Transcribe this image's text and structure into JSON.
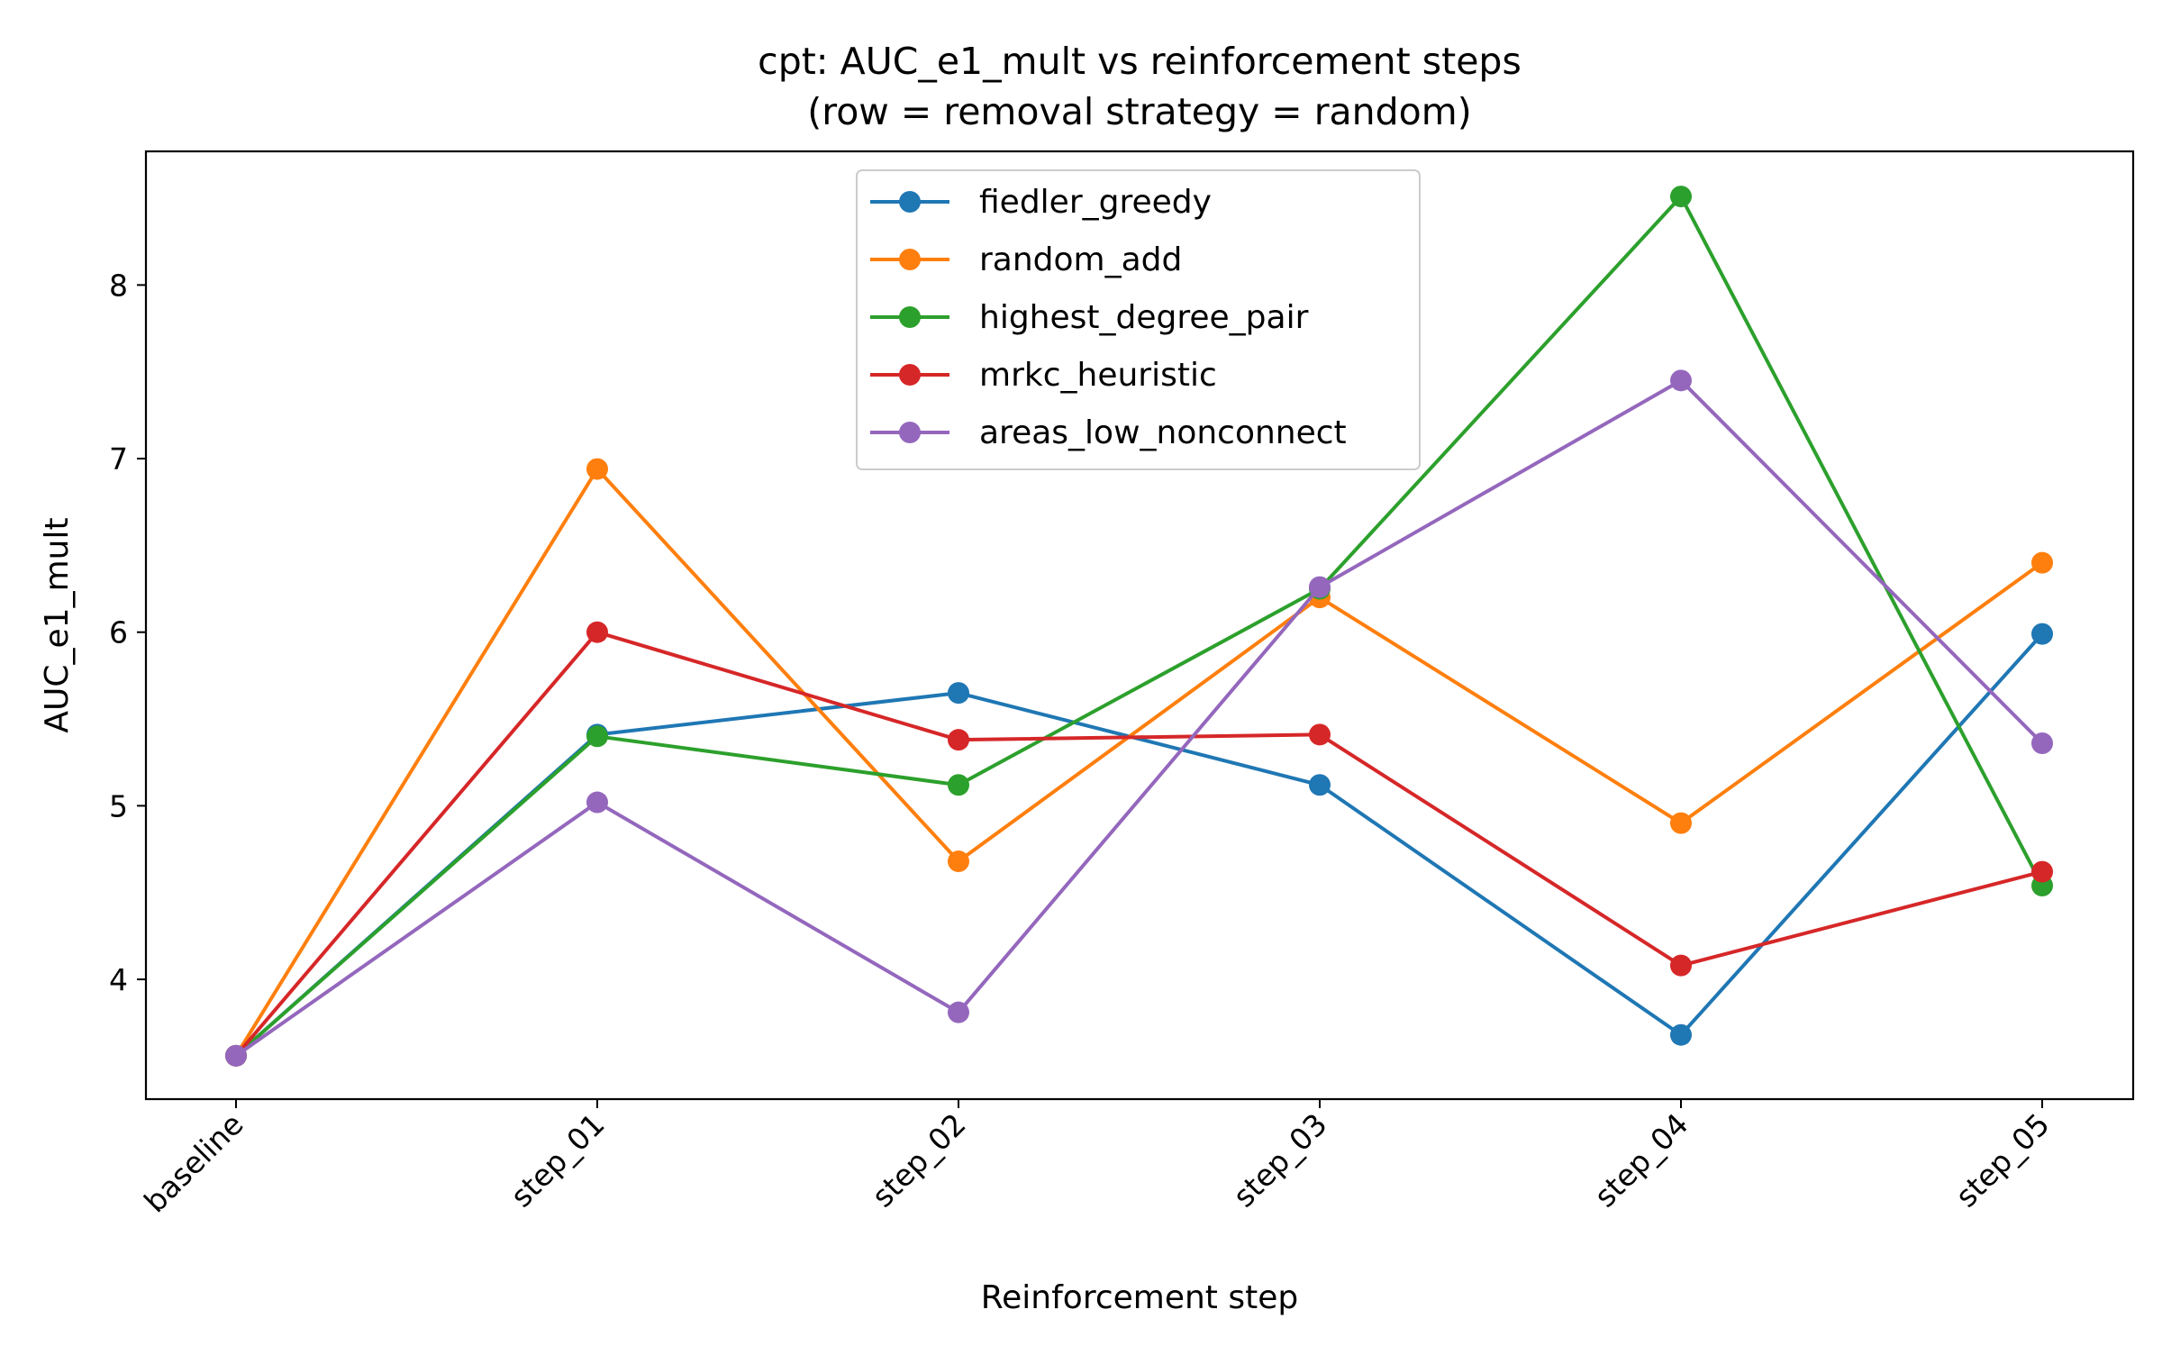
{
  "chart_data": {
    "type": "line",
    "title": "cpt: AUC_e1_mult vs reinforcement steps",
    "subtitle": "(row = removal strategy = random)",
    "xlabel": "Reinforcement step",
    "ylabel": "AUC_e1_mult",
    "categories": [
      "baseline",
      "step_01",
      "step_02",
      "step_03",
      "step_04",
      "step_05"
    ],
    "ylim": [
      3.31,
      8.77
    ],
    "yticks": [
      4,
      5,
      6,
      7,
      8
    ],
    "grid": false,
    "legend_position": "top-center",
    "series": [
      {
        "name": "fiedler_greedy",
        "color": "#1f77b4",
        "values": [
          3.56,
          5.41,
          5.65,
          5.12,
          3.68,
          5.99
        ]
      },
      {
        "name": "random_add",
        "color": "#ff7f0e",
        "values": [
          3.56,
          6.94,
          4.68,
          6.2,
          4.9,
          6.4
        ]
      },
      {
        "name": "highest_degree_pair",
        "color": "#2ca02c",
        "values": [
          3.56,
          5.4,
          5.12,
          6.25,
          8.51,
          4.54
        ]
      },
      {
        "name": "mrkc_heuristic",
        "color": "#d62728",
        "values": [
          3.56,
          6.0,
          5.38,
          5.41,
          4.08,
          4.62
        ]
      },
      {
        "name": "areas_low_nonconnect",
        "color": "#9467bd",
        "values": [
          3.56,
          5.02,
          3.81,
          6.26,
          7.45,
          5.36
        ]
      }
    ]
  }
}
